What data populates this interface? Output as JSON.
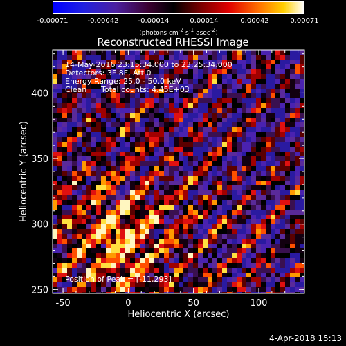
{
  "colorbar": {
    "ticks": [
      "-0.00071",
      "-0.00042",
      "-0.00014",
      "0.00014",
      "0.00042",
      "0.00071"
    ],
    "units_prefix": "(photons cm",
    "units_exp1": "-2",
    "units_mid": " s",
    "units_exp2": "-1",
    "units_mid2": " asec",
    "units_exp3": "-2",
    "units_suffix": ")",
    "range": [
      -0.00071,
      0.00071
    ]
  },
  "chart_data": {
    "type": "heatmap",
    "title": "Reconstructed RHESSI Image",
    "xlabel": "Heliocentric X (arcsec)",
    "ylabel": "Heliocentric Y (arcsec)",
    "xlim": [
      -58,
      135
    ],
    "ylim": [
      247,
      433
    ],
    "xticks": [
      -50,
      0,
      50,
      100
    ],
    "yticks": [
      250,
      300,
      350,
      400
    ],
    "xtick_labels": [
      "-50",
      "0",
      "50",
      "100"
    ],
    "ytick_labels": [
      "250",
      "300",
      "350",
      "400"
    ],
    "peak_position": [
      -11,
      293
    ],
    "colormap": "rainbow-hot",
    "grid": false
  },
  "annotations": {
    "line1": "14-May-2016 23:15:34.000 to 23:25:34.000",
    "line2": "Detectors: 3F 8F, Att 0",
    "line3": "Energy Range: 25.0 - 50.0 keV",
    "line4_a": "Clean",
    "line4_b": "Total counts: 4.45E+03",
    "peak_label": "Position of Peak = [-11,293]"
  },
  "footer_date": "4-Apr-2018 15:13"
}
